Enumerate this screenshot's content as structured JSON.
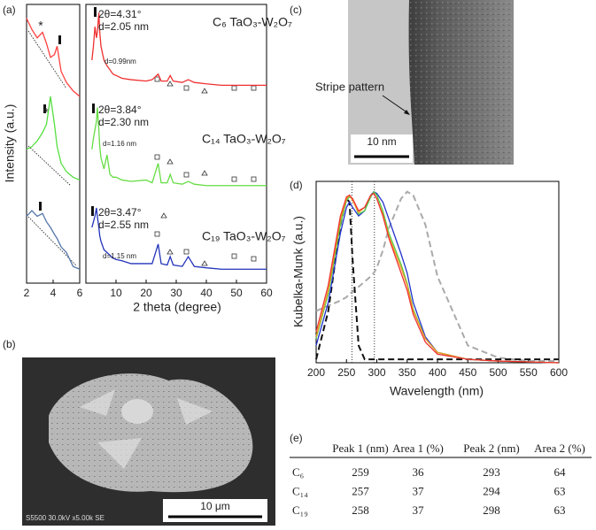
{
  "panel_labels": [
    "(a)",
    "(b)",
    "(c)",
    "(d)",
    "(e)"
  ],
  "chart_data": [
    {
      "type": "line",
      "y_label": "Intensity (a.u.)",
      "impurity_marker": "*",
      "x": [
        2,
        2.4,
        2.8,
        3.2,
        3.5,
        3.8,
        4.1,
        4.3,
        4.6,
        5,
        5.5,
        6
      ],
      "xlim": [
        2,
        6
      ],
      "xticks": [
        2,
        4,
        6
      ],
      "ylim": [
        0,
        100
      ],
      "series": [
        {
          "color": "#ff4040",
          "values": [
            95,
            91,
            88,
            90,
            86,
            81,
            82,
            85,
            76,
            72,
            69,
            67
          ]
        },
        {
          "color": "#55e040",
          "values": [
            48,
            49,
            51,
            54,
            57,
            67,
            57,
            49,
            43,
            40,
            38,
            37
          ]
        },
        {
          "color": "#5577aa",
          "values": [
            24,
            26,
            24,
            25,
            22,
            20,
            17.5,
            16,
            13,
            11,
            6,
            5
          ]
        }
      ]
    },
    {
      "type": "line",
      "x_label": "2 theta (degree)",
      "x": [
        2,
        2.5,
        3,
        3.5,
        3.8,
        4.3,
        4.6,
        5,
        6,
        7,
        8,
        9,
        10,
        12,
        15,
        20,
        22,
        24,
        25,
        27,
        28,
        29,
        32,
        34,
        36,
        40,
        45,
        50,
        55,
        60
      ],
      "xlim": [
        0,
        60
      ],
      "xticks": [
        10,
        20,
        30,
        40,
        50,
        60
      ],
      "ylim": [
        0,
        100
      ],
      "series": [
        {
          "name": "C₆ TaO₃-W₂O₇",
          "angle_label": "2θ=4.31°",
          "d_label": "d=2.05 nm",
          "minor_label": "d=0.99nm",
          "color": "#f03030",
          "values": [
            80,
            85,
            92,
            88,
            90,
            97,
            90,
            85,
            80,
            78,
            76.5,
            75,
            74.5,
            73.5,
            73,
            72.5,
            73,
            75,
            72.5,
            72.5,
            74.5,
            72.5,
            72,
            73,
            72,
            71.5,
            71,
            71,
            71,
            71
          ]
        },
        {
          "name": "C₁₄ TaO₃-W₂O₇",
          "angle_label": "2θ=3.84°",
          "d_label": "d=2.30 nm",
          "minor_label": "d=1.16 nm",
          "color": "#66dd44",
          "values": [
            48,
            52,
            55,
            58,
            63,
            55,
            49,
            45,
            41,
            46,
            39,
            38,
            38,
            37,
            36.5,
            37,
            36,
            43,
            36,
            36,
            39,
            36,
            35.5,
            36.5,
            35.5,
            35,
            35,
            35,
            35,
            35
          ]
        },
        {
          "name": "C₁₉ TaO₃-W₂O₇",
          "angle_label": "2θ=3.47°",
          "d_label": "d=2.55 nm",
          "minor_label": "d=1.15 nm",
          "color": "#2233bb",
          "values": [
            20,
            22,
            24,
            27,
            24,
            20,
            17,
            15,
            12,
            11,
            10,
            9,
            8.5,
            8,
            7,
            7,
            7,
            14,
            7,
            6.5,
            9.5,
            6.5,
            6,
            9.5,
            6,
            5.5,
            5,
            5,
            5,
            5
          ]
        }
      ]
    },
    {
      "type": "line",
      "x_label": "Wavelength (nm)",
      "y_label": "Kubelka-Munk (a.u.)",
      "x": [
        200,
        220,
        240,
        250,
        255,
        260,
        270,
        280,
        290,
        295,
        300,
        310,
        320,
        340,
        350,
        360,
        380,
        400,
        450,
        500,
        550,
        600
      ],
      "xlim": [
        200,
        600
      ],
      "xticks": [
        200,
        250,
        300,
        350,
        400,
        450,
        500,
        550,
        600
      ],
      "ylim": [
        0,
        1.05
      ],
      "reference_lines": [
        259,
        296
      ],
      "series": [
        {
          "color": "#aaaaaa",
          "dash": true,
          "values": [
            0.3,
            0.33,
            0.36,
            0.38,
            0.4,
            0.41,
            0.44,
            0.47,
            0.5,
            0.52,
            0.55,
            0.65,
            0.78,
            0.95,
            0.99,
            0.97,
            0.8,
            0.5,
            0.1,
            0.03,
            0.01,
            0.01
          ]
        },
        {
          "color": "#111111",
          "dash": true,
          "values": [
            0.02,
            0.3,
            0.8,
            0.95,
            0.93,
            0.6,
            0.1,
            0.02,
            0.02,
            0.02,
            0.02,
            0.02,
            0.02,
            0.02,
            0.02,
            0.02,
            0.02,
            0.02,
            0.02,
            0.02,
            0.02,
            0.02
          ]
        },
        {
          "color": "#2233cc",
          "values": [
            0.1,
            0.35,
            0.75,
            0.9,
            0.93,
            0.9,
            0.85,
            0.88,
            0.97,
            0.99,
            0.98,
            0.93,
            0.83,
            0.63,
            0.52,
            0.35,
            0.15,
            0.06,
            0.02,
            0.01,
            0.005,
            0
          ]
        },
        {
          "color": "#55cc44",
          "values": [
            0.14,
            0.4,
            0.8,
            0.94,
            0.96,
            0.95,
            0.86,
            0.88,
            0.96,
            0.99,
            0.97,
            0.88,
            0.75,
            0.57,
            0.46,
            0.31,
            0.14,
            0.06,
            0.02,
            0.01,
            0.005,
            0
          ]
        },
        {
          "color": "#ee9922",
          "values": [
            0.15,
            0.42,
            0.83,
            0.95,
            0.97,
            0.94,
            0.87,
            0.9,
            0.97,
            0.98,
            0.95,
            0.86,
            0.73,
            0.55,
            0.45,
            0.3,
            0.14,
            0.06,
            0.02,
            0.01,
            0.005,
            0
          ]
        },
        {
          "color": "#ee3333",
          "values": [
            0.18,
            0.45,
            0.85,
            0.96,
            0.97,
            0.95,
            0.88,
            0.9,
            0.97,
            0.98,
            0.95,
            0.85,
            0.72,
            0.52,
            0.42,
            0.28,
            0.12,
            0.05,
            0.02,
            0.01,
            0.005,
            0
          ]
        }
      ]
    }
  ],
  "images": {
    "sem": {
      "info": "S5500 30.0kV x5.00k SE",
      "scale": "10 μm"
    },
    "tem": {
      "annotation": "Stripe pattern",
      "scale": "10 nm"
    }
  },
  "table": {
    "header": [
      "Peak 1 (nm)",
      "Area 1 (%)",
      "Peak 2 (nm)",
      "Area 2 (%)"
    ],
    "rows": [
      [
        "C₆",
        259,
        36,
        293,
        64
      ],
      [
        "C₁₄",
        257,
        37,
        294,
        63
      ],
      [
        "C₁₉",
        258,
        37,
        298,
        63
      ]
    ]
  }
}
